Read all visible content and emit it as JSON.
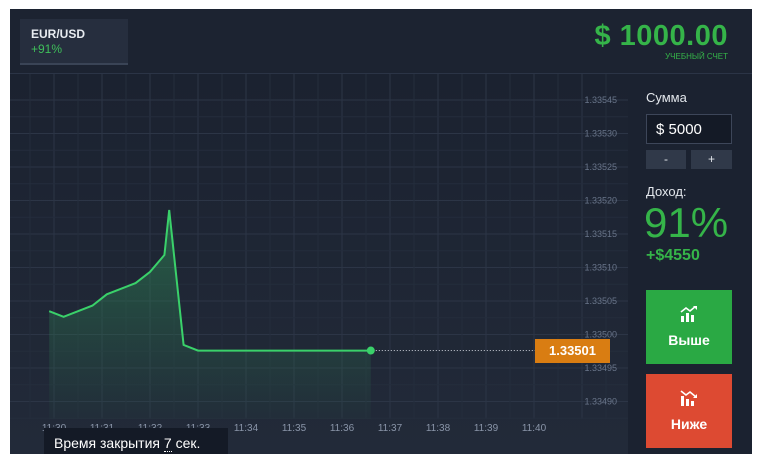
{
  "asset": {
    "name": "EUR/USD",
    "payout": "+91%"
  },
  "balance": {
    "amount": "$ 1000.00",
    "label": "УЧЕБНЫЙ СЧЕТ"
  },
  "chart": {
    "y_ticks": [
      "1.33545",
      "1.33530",
      "1.33525",
      "1.33520",
      "1.33515",
      "1.33510",
      "1.33505",
      "1.33500",
      "1.33495",
      "1.33490"
    ],
    "x_ticks": [
      "11:30",
      "11:31",
      "11:32",
      "11:33",
      "11:34",
      "11:35",
      "11:36",
      "11:37",
      "11:38",
      "11:39",
      "11:40"
    ],
    "current_price": "1.33501",
    "close_time_prefix": "Время закрытия ",
    "close_time_value": "7",
    "close_time_suffix": " сек.",
    "line_color": "#3ad16a",
    "price_tag_color": "#d97d12"
  },
  "chart_data": {
    "type": "line",
    "x": [
      "11:29.9",
      "11:30.2",
      "11:30.5",
      "11:30.8",
      "11:31.1",
      "11:31.4",
      "11:31.7",
      "11:32.0",
      "11:32.3",
      "11:32.4",
      "11:32.7",
      "11:33.0",
      "11:33.3",
      "11:33.6",
      "11:33.9",
      "11:34.2",
      "11:34.5",
      "11:34.8",
      "11:35.1",
      "11:35.4",
      "11:35.7",
      "11:36.0",
      "11:36.3",
      "11:36.6"
    ],
    "values": [
      1.33508,
      1.33507,
      1.33508,
      1.33509,
      1.33511,
      1.33512,
      1.33513,
      1.33515,
      1.33518,
      1.33526,
      1.33502,
      1.33501,
      1.33501,
      1.33501,
      1.33501,
      1.33501,
      1.33501,
      1.33501,
      1.33501,
      1.33501,
      1.33501,
      1.33501,
      1.33501,
      1.33501
    ],
    "ylim": [
      1.33489,
      1.33547
    ],
    "grid": true
  },
  "panel": {
    "amount_label": "Сумма",
    "amount_value": "$ 5000",
    "minus": "-",
    "plus": "+",
    "income_label": "Доход:",
    "income_pct": "91%",
    "income_amount": "+$4550",
    "up_label": "Выше",
    "down_label": "Ниже",
    "up_color": "#2aa944",
    "down_color": "#dd4a32"
  }
}
